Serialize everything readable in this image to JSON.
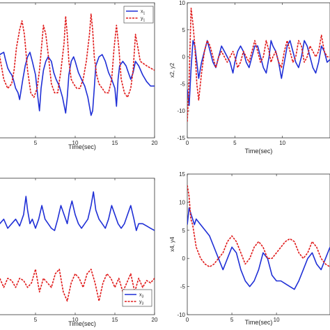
{
  "chart_data": [
    {
      "type": "line",
      "xlabel": "Time(sec)",
      "ylabel": "",
      "xlim": [
        0,
        20
      ],
      "ylim": [
        -15,
        15
      ],
      "x_tick_labels": [
        "5",
        "10",
        "15",
        "20"
      ],
      "y_tick_labels": [],
      "legend_position": "top-right",
      "series": [
        {
          "name": "x1",
          "color": "#1f2fd6",
          "style": "solid",
          "x": [
            0,
            0.5,
            1,
            1.2,
            1.5,
            1.8,
            2.0,
            2.2,
            2.5,
            2.8,
            3.0,
            3.4,
            3.7,
            4.0,
            4.3,
            4.6,
            5.0,
            5.3,
            5.5,
            5.7,
            6.0,
            6.3,
            6.6,
            7.0,
            7.3,
            7.6,
            8.0,
            8.4,
            8.8,
            9.0,
            9.2,
            9.5,
            9.8,
            10.0,
            10.4,
            10.8,
            11.2,
            11.6,
            12.0,
            12.2,
            12.4,
            12.6,
            13.0,
            13.4,
            13.8,
            14.2,
            14.6,
            15.0,
            15.2,
            15.4,
            15.6,
            16.0,
            16.4,
            16.8,
            17.0,
            17.3,
            17.6,
            18.0,
            18.5,
            19.0,
            19.5,
            20.0
          ],
          "y": [
            1.5,
            3.5,
            4,
            2.5,
            0.5,
            -0.5,
            -1,
            -2,
            -4,
            -5,
            -6.5,
            -2,
            1,
            3,
            4,
            2,
            -1,
            -6,
            -9,
            -4,
            0,
            2,
            3,
            2,
            -0.5,
            -2,
            -3.5,
            -6,
            -9.5,
            -6,
            -1,
            2,
            3,
            2,
            -0.5,
            -2,
            -3.5,
            -6,
            -10,
            -9,
            -4,
            1,
            3,
            3.5,
            2,
            -0.5,
            -2,
            -4,
            -8,
            -2,
            1,
            2,
            1,
            -1,
            -2,
            -0.5,
            2,
            1,
            -1,
            -2.5,
            -3.5,
            -3.5
          ]
        },
        {
          "name": "y1",
          "color": "#e01818",
          "style": "dashed",
          "x": [
            0,
            0.5,
            1,
            1.5,
            2.0,
            2.3,
            2.6,
            3.0,
            3.3,
            3.6,
            4.0,
            4.4,
            4.8,
            5.2,
            5.5,
            5.7,
            6.0,
            6.3,
            6.7,
            7.0,
            7.4,
            7.8,
            8.2,
            8.6,
            8.8,
            9.0,
            9.2,
            9.5,
            9.8,
            10.2,
            10.6,
            11.0,
            11.4,
            11.8,
            12.0,
            12.2,
            12.4,
            12.7,
            13.0,
            13.4,
            13.8,
            14.2,
            14.6,
            14.9,
            15.2,
            15.5,
            15.8,
            16.2,
            16.6,
            17.0,
            17.3,
            17.6,
            17.9,
            18.2,
            18.6,
            19.0,
            19.5,
            20.0
          ],
          "y": [
            6,
            3,
            -2,
            -4,
            -3,
            0,
            5,
            9,
            11,
            8,
            0,
            -5,
            -6,
            -4,
            0,
            4,
            10,
            8,
            2,
            -3,
            -5,
            -5,
            0,
            6,
            12,
            8,
            2,
            -2,
            -3,
            -4,
            -4,
            -2,
            2,
            8,
            12.5,
            9,
            3,
            -1,
            -3,
            -4,
            -5,
            -5,
            -2,
            5,
            10,
            5,
            -2,
            -5,
            -6,
            -4,
            0,
            8,
            5,
            2,
            1.5,
            1,
            0.5,
            0
          ]
        }
      ]
    },
    {
      "type": "line",
      "xlabel": "Time(sec)",
      "ylabel": "x2, y2",
      "xlim": [
        0,
        15
      ],
      "ylim": [
        -15,
        10
      ],
      "x_tick_labels": [
        "0",
        "5",
        "10"
      ],
      "y_tick_labels": [
        "10",
        "5",
        "0",
        "-5",
        "-10",
        "-15"
      ],
      "legend_position": "none",
      "series": [
        {
          "name": "x2",
          "color": "#1f2fd6",
          "style": "solid",
          "x": [
            0,
            0.2,
            0.4,
            0.6,
            0.8,
            1.0,
            1.2,
            1.5,
            1.8,
            2.1,
            2.4,
            2.7,
            3.0,
            3.3,
            3.6,
            3.9,
            4.2,
            4.5,
            4.8,
            5.0,
            5.3,
            5.6,
            5.9,
            6.2,
            6.5,
            6.8,
            7.1,
            7.4,
            7.7,
            8.0,
            8.3,
            8.6,
            8.8,
            9.0,
            9.3,
            9.6,
            9.9,
            10.2,
            10.5,
            10.8,
            11.1,
            11.4,
            11.7,
            12.0,
            12.3,
            12.6,
            12.9,
            13.2,
            13.5,
            13.8,
            14.1,
            14.4,
            14.7,
            15.0
          ],
          "y": [
            -6,
            -9,
            -2,
            3,
            2,
            -1,
            -4,
            -1,
            1,
            3,
            1,
            -1,
            -2,
            0,
            2,
            1,
            0,
            -1,
            -3,
            -1,
            1,
            2,
            1,
            -1,
            -2,
            0,
            2,
            2,
            0,
            -2,
            -3,
            0,
            3,
            2,
            1,
            -1,
            -4,
            -1,
            2,
            3,
            1,
            -1,
            -2,
            0,
            3,
            2,
            0,
            -2,
            -3,
            -1,
            2,
            1,
            -1,
            -0.5
          ]
        },
        {
          "name": "y2",
          "color": "#e01818",
          "style": "dashed",
          "x": [
            0,
            0.2,
            0.4,
            0.6,
            0.8,
            1.0,
            1.2,
            1.5,
            1.8,
            2.1,
            2.4,
            2.7,
            3.0,
            3.3,
            3.6,
            3.9,
            4.2,
            4.5,
            4.8,
            5.0,
            5.3,
            5.6,
            5.9,
            6.2,
            6.5,
            6.8,
            7.1,
            7.4,
            7.7,
            8.0,
            8.3,
            8.6,
            8.8,
            9.0,
            9.3,
            9.6,
            9.9,
            10.2,
            10.5,
            10.8,
            11.1,
            11.4,
            11.7,
            12.0,
            12.3,
            12.6,
            12.9,
            13.2,
            13.5,
            13.8,
            14.1,
            14.4,
            14.7,
            15.0
          ],
          "y": [
            -12,
            -4,
            9,
            6,
            2,
            -5,
            -8,
            -3,
            1,
            3,
            2,
            0,
            -2,
            0,
            1,
            0,
            -1,
            0,
            1,
            0,
            -2,
            -1,
            1,
            0,
            -1,
            1,
            3,
            1,
            -1,
            0,
            3,
            1,
            -1,
            0,
            1,
            -1,
            -2,
            1,
            3,
            1,
            -1,
            0,
            3,
            2,
            -1,
            0,
            2,
            1,
            0,
            1,
            4,
            1,
            0,
            0
          ]
        }
      ]
    },
    {
      "type": "line",
      "xlabel": "Time(sec)",
      "ylabel": "",
      "xlim": [
        0,
        20
      ],
      "ylim": [
        -15,
        15
      ],
      "x_tick_labels": [
        "5",
        "10",
        "15",
        "20"
      ],
      "y_tick_labels": [],
      "legend_position": "bottom-right",
      "series": [
        {
          "name": "x3",
          "color": "#1f2fd6",
          "style": "solid",
          "x": [
            0,
            0.5,
            1.0,
            1.5,
            2.0,
            2.5,
            3.0,
            3.5,
            3.8,
            4.0,
            4.3,
            4.6,
            5.0,
            5.4,
            5.8,
            6.2,
            6.6,
            7.0,
            7.4,
            7.8,
            8.2,
            8.6,
            9.0,
            9.3,
            9.6,
            10.0,
            10.4,
            10.8,
            11.2,
            11.6,
            12.0,
            12.3,
            12.6,
            13.0,
            13.4,
            13.8,
            14.2,
            14.6,
            15.0,
            15.4,
            15.8,
            16.2,
            16.6,
            17.0,
            17.4,
            17.7,
            18.0,
            18.5,
            19.0,
            19.5,
            20.0
          ],
          "y": [
            7,
            5,
            6,
            4,
            5,
            6,
            4.5,
            7,
            11,
            8,
            5,
            6,
            4,
            6,
            9,
            6,
            5,
            4,
            3.5,
            6,
            9,
            7,
            5,
            8,
            10,
            7,
            5,
            4,
            5,
            6,
            9,
            12,
            8,
            6,
            5,
            4,
            6,
            9,
            7,
            5,
            4,
            5,
            7,
            9,
            6,
            3.5,
            5,
            5,
            4.5,
            4,
            3.5
          ]
        },
        {
          "name": "y3",
          "color": "#e01818",
          "style": "dashed",
          "x": [
            0,
            0.5,
            1.0,
            1.5,
            2.0,
            2.5,
            3.0,
            3.5,
            4.0,
            4.5,
            5.0,
            5.5,
            6.0,
            6.5,
            7.0,
            7.5,
            8.0,
            8.5,
            9.0,
            9.5,
            10.0,
            10.5,
            11.0,
            11.5,
            12.0,
            12.5,
            13.0,
            13.5,
            14.0,
            14.5,
            15.0,
            15.5,
            16.0,
            16.5,
            17.0,
            17.5,
            18.0,
            18.5,
            19.0,
            19.5,
            20.0
          ],
          "y": [
            -8,
            -7,
            -9,
            -7,
            -7.5,
            -9,
            -7,
            -7.5,
            -9,
            -8,
            -5,
            -10,
            -7,
            -8,
            -9,
            -6,
            -5,
            -10,
            -12,
            -8,
            -6,
            -7,
            -9,
            -6,
            -5,
            -8,
            -12,
            -8,
            -6,
            -7,
            -9,
            -7,
            -10,
            -8,
            -6,
            -10,
            -7,
            -9,
            -7.5,
            -8,
            -7
          ]
        }
      ]
    },
    {
      "type": "line",
      "xlabel": "Time(sec)",
      "ylabel": "x4, y4",
      "xlim": [
        0,
        16
      ],
      "ylim": [
        -10,
        15
      ],
      "x_tick_labels": [
        "0",
        "5",
        "10"
      ],
      "y_tick_labels": [
        "15",
        "10",
        "5",
        "0",
        "-5",
        "-10"
      ],
      "legend_position": "none",
      "series": [
        {
          "name": "x4",
          "color": "#1f2fd6",
          "style": "solid",
          "x": [
            0,
            0.2,
            0.4,
            0.6,
            0.8,
            1.0,
            1.5,
            2.0,
            2.5,
            3.0,
            3.5,
            4.0,
            4.5,
            5.0,
            5.5,
            6.0,
            6.5,
            7.0,
            7.5,
            8.0,
            8.5,
            9.0,
            9.5,
            10.0,
            10.5,
            11.0,
            11.5,
            12.0,
            12.5,
            13.0,
            13.5,
            14.0,
            14.5,
            15.0,
            15.5,
            16.0
          ],
          "y": [
            6,
            9,
            8,
            7,
            6,
            7,
            6,
            5,
            4,
            2,
            0,
            -2,
            0,
            2,
            1,
            -2,
            -4,
            -5,
            -4,
            -2,
            1,
            0,
            -3,
            -4,
            -4,
            -4.5,
            -5,
            -5.5,
            -4,
            -2,
            0,
            1,
            -1,
            -2,
            0,
            2
          ]
        },
        {
          "name": "y4",
          "color": "#e01818",
          "style": "dashed",
          "x": [
            0,
            0.2,
            0.4,
            0.6,
            0.8,
            1.0,
            1.5,
            2.0,
            2.5,
            3.0,
            3.5,
            4.0,
            4.5,
            5.0,
            5.5,
            6.0,
            6.5,
            7.0,
            7.5,
            8.0,
            8.5,
            9.0,
            9.5,
            10.0,
            10.5,
            11.0,
            11.5,
            12.0,
            12.5,
            13.0,
            13.5,
            14.0,
            14.5,
            15.0,
            15.5,
            16.0
          ],
          "y": [
            13,
            11,
            7,
            6,
            4,
            2,
            0,
            -1,
            -1.5,
            -1,
            0,
            1,
            3,
            4,
            3,
            1,
            -1,
            0,
            2,
            3,
            2,
            0,
            0,
            1,
            2,
            3,
            3.5,
            3,
            1,
            0,
            1,
            3,
            2,
            0,
            -1,
            -1.5
          ]
        }
      ]
    }
  ],
  "legends": [
    {
      "items": [
        {
          "label": "x",
          "sub": "1",
          "color": "#1f2fd6",
          "style": "solid"
        },
        {
          "label": "y",
          "sub": "1",
          "color": "#e01818",
          "style": "dashed"
        }
      ]
    },
    {
      "items": [
        {
          "label": "x",
          "sub": "3",
          "color": "#1f2fd6",
          "style": "solid"
        },
        {
          "label": "y",
          "sub": "3",
          "color": "#e01818",
          "style": "dashed"
        }
      ]
    }
  ]
}
